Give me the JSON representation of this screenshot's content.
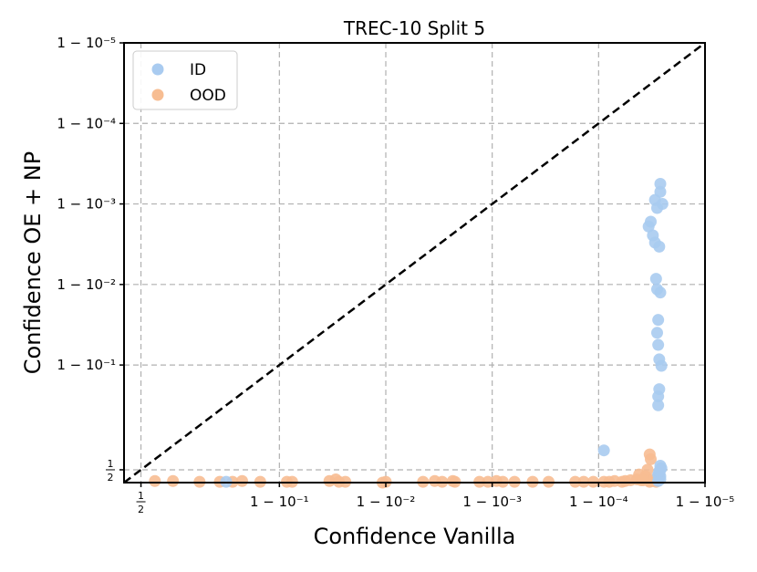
{
  "chart_data": {
    "type": "scatter",
    "title": "TREC-10 Split 5",
    "xlabel": "Confidence Vanilla",
    "ylabel": "Confidence OE + NP",
    "scale": "logit (plotted as -log10(1 - confidence))",
    "xlim": [
      -0.46,
      5
    ],
    "ylim": [
      -0.46,
      5
    ],
    "x_ticks": [
      {
        "pos": -0.301,
        "label": "1/2"
      },
      {
        "pos": 1,
        "label": "1 − 10⁻¹"
      },
      {
        "pos": 2,
        "label": "1 − 10⁻²"
      },
      {
        "pos": 3,
        "label": "1 − 10⁻³"
      },
      {
        "pos": 4,
        "label": "1 − 10⁻⁴"
      },
      {
        "pos": 5,
        "label": "1 − 10⁻⁵"
      }
    ],
    "y_ticks": [
      {
        "pos": -0.301,
        "label": "1/2"
      },
      {
        "pos": 1,
        "label": "1 − 10⁻¹"
      },
      {
        "pos": 2,
        "label": "1 − 10⁻²"
      },
      {
        "pos": 3,
        "label": "1 − 10⁻³"
      },
      {
        "pos": 4,
        "label": "1 − 10⁻⁴"
      },
      {
        "pos": 5,
        "label": "1 − 10⁻⁵"
      }
    ],
    "grid": true,
    "legend_position": "top-left",
    "reference_line": {
      "style": "dashed",
      "color": "#000000",
      "from": [
        -0.46,
        -0.46
      ],
      "to": [
        5,
        5
      ]
    },
    "series": [
      {
        "name": "ID",
        "color": "#a9cbf0",
        "points": [
          [
            4.58,
            3.25
          ],
          [
            4.58,
            3.15
          ],
          [
            4.53,
            3.05
          ],
          [
            4.6,
            3.0
          ],
          [
            4.55,
            2.95
          ],
          [
            4.49,
            2.78
          ],
          [
            4.47,
            2.72
          ],
          [
            4.51,
            2.61
          ],
          [
            4.53,
            2.52
          ],
          [
            4.57,
            2.47
          ],
          [
            4.54,
            2.07
          ],
          [
            4.55,
            1.94
          ],
          [
            4.58,
            1.9
          ],
          [
            4.56,
            1.56
          ],
          [
            4.55,
            1.4
          ],
          [
            4.56,
            1.25
          ],
          [
            4.57,
            1.07
          ],
          [
            4.59,
            0.99
          ],
          [
            4.57,
            0.7
          ],
          [
            4.56,
            0.61
          ],
          [
            4.56,
            0.5
          ],
          [
            4.05,
            -0.06
          ],
          [
            4.56,
            -0.36
          ],
          [
            4.58,
            -0.42
          ],
          [
            4.58,
            -0.25
          ],
          [
            4.57,
            -0.34
          ],
          [
            4.58,
            -0.38
          ],
          [
            4.56,
            -0.44
          ],
          [
            4.59,
            -0.28
          ],
          [
            4.57,
            -0.32
          ],
          [
            0.5,
            -0.45
          ],
          [
            4.58,
            -0.3
          ]
        ]
      },
      {
        "name": "OOD",
        "color": "#f7bd92",
        "points": [
          [
            -0.17,
            -0.44
          ],
          [
            0.0,
            -0.44
          ],
          [
            0.25,
            -0.45
          ],
          [
            0.44,
            -0.45
          ],
          [
            0.56,
            -0.45
          ],
          [
            0.65,
            -0.44
          ],
          [
            0.82,
            -0.45
          ],
          [
            1.07,
            -0.45
          ],
          [
            1.12,
            -0.45
          ],
          [
            1.47,
            -0.44
          ],
          [
            1.53,
            -0.42
          ],
          [
            1.56,
            -0.45
          ],
          [
            1.62,
            -0.45
          ],
          [
            1.97,
            -0.46
          ],
          [
            2.0,
            -0.45
          ],
          [
            2.35,
            -0.45
          ],
          [
            2.46,
            -0.44
          ],
          [
            2.53,
            -0.45
          ],
          [
            2.63,
            -0.44
          ],
          [
            2.65,
            -0.45
          ],
          [
            2.88,
            -0.45
          ],
          [
            2.96,
            -0.45
          ],
          [
            3.04,
            -0.44
          ],
          [
            3.1,
            -0.45
          ],
          [
            3.21,
            -0.45
          ],
          [
            3.38,
            -0.45
          ],
          [
            3.53,
            -0.45
          ],
          [
            3.78,
            -0.45
          ],
          [
            3.86,
            -0.45
          ],
          [
            3.95,
            -0.45
          ],
          [
            4.05,
            -0.45
          ],
          [
            4.1,
            -0.45
          ],
          [
            4.15,
            -0.44
          ],
          [
            4.22,
            -0.45
          ],
          [
            4.25,
            -0.44
          ],
          [
            4.3,
            -0.43
          ],
          [
            4.36,
            -0.42
          ],
          [
            4.4,
            -0.43
          ],
          [
            4.44,
            -0.38
          ],
          [
            4.46,
            -0.43
          ],
          [
            4.48,
            -0.45
          ],
          [
            4.5,
            -0.44
          ],
          [
            4.52,
            -0.42
          ],
          [
            4.54,
            -0.45
          ],
          [
            4.38,
            -0.36
          ],
          [
            4.42,
            -0.43
          ],
          [
            4.46,
            -0.3
          ],
          [
            4.48,
            -0.11
          ],
          [
            4.49,
            -0.17
          ]
        ]
      }
    ]
  }
}
